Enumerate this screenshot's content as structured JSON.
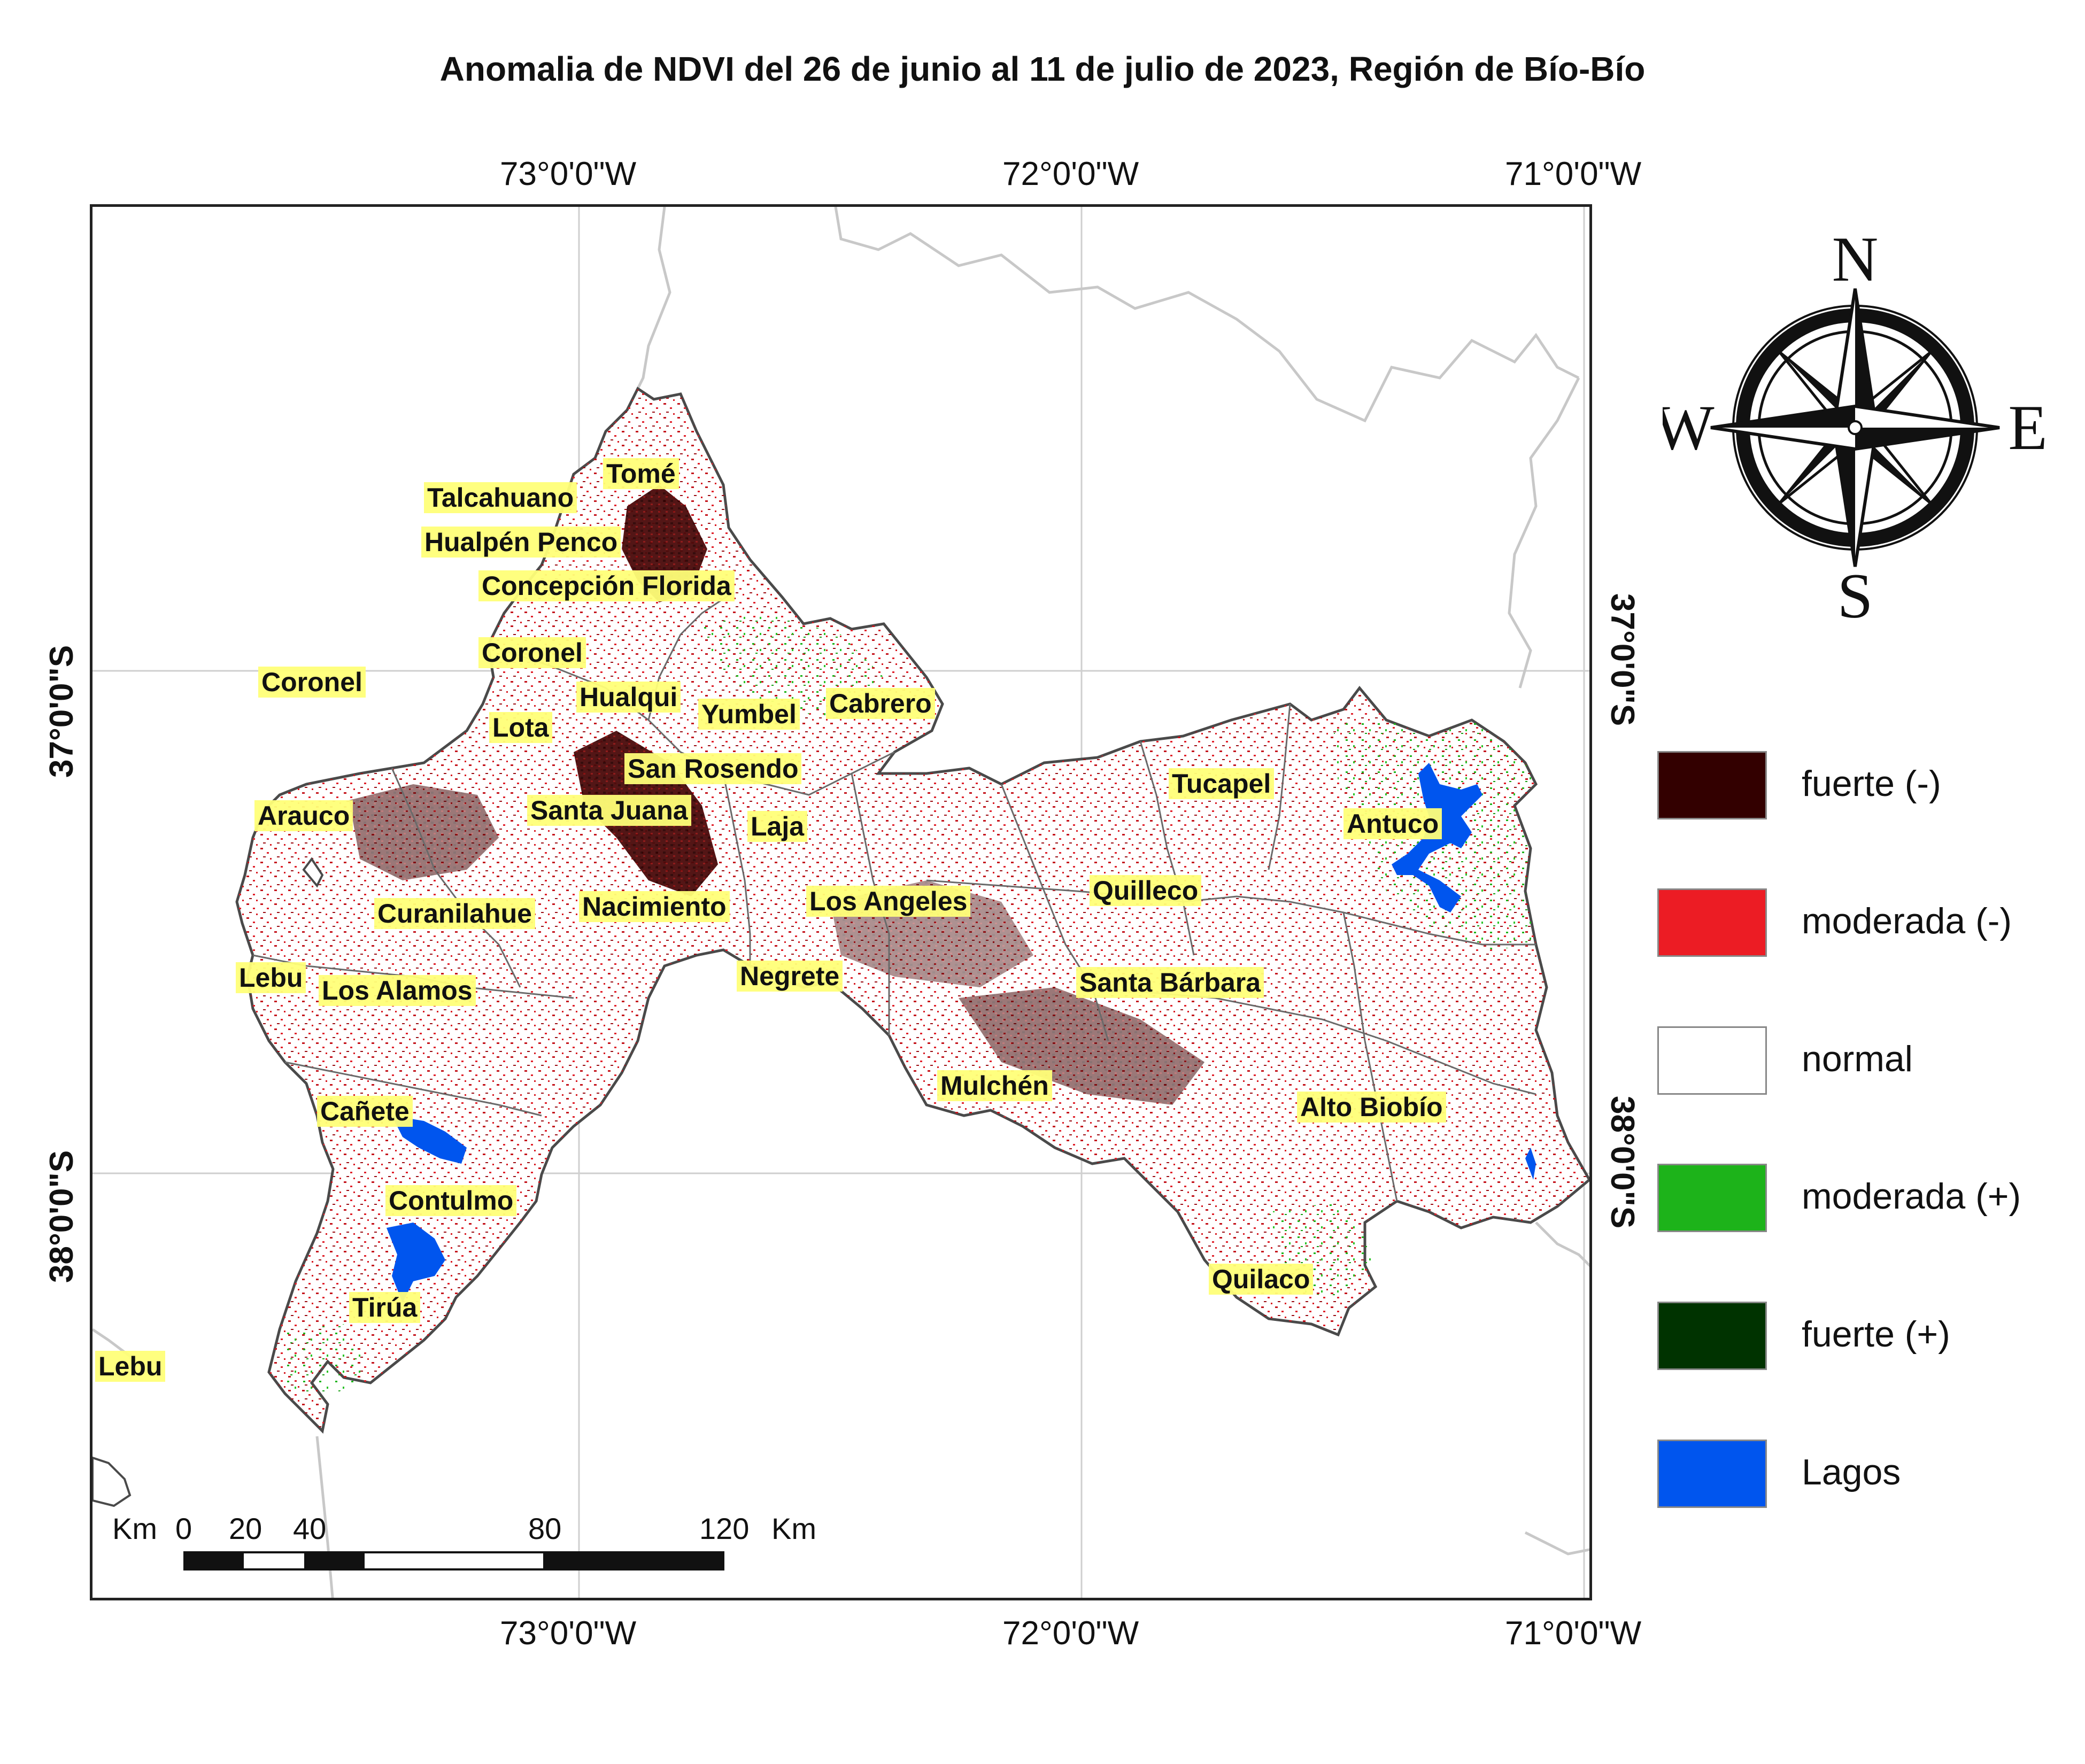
{
  "title": "Anomalia de NDVI del 26 de junio al 11 de julio de 2023, Región de Bío-Bío",
  "longitude_labels": [
    "73°0'0\"W",
    "72°0'0\"W",
    "71°0'0\"W"
  ],
  "latitude_labels": [
    "37°0'0\"S",
    "38°0'0\"S"
  ],
  "municipalities": [
    "Tomé",
    "Talcahuano",
    "Hualpén Penco",
    "Concepción Florida",
    "Coronel",
    "Coronel",
    "Hualqui",
    "Yumbel",
    "Cabrero",
    "Lota",
    "San Rosendo",
    "Tucapel",
    "Antuco",
    "Arauco",
    "Santa Juana",
    "Laja",
    "Quilleco",
    "Curanilahue",
    "Nacimiento",
    "Los Angeles",
    "Lebu",
    "Los Alamos",
    "Negrete",
    "Santa Bárbara",
    "Mulchén",
    "Alto Biobío",
    "Cañete",
    "Contulmo",
    "Quilaco",
    "Tirúa",
    "Lebu"
  ],
  "compass": {
    "north": "N",
    "south": "S",
    "east": "E",
    "west": "W"
  },
  "legend": [
    {
      "label": "fuerte (-)",
      "color": "#330000"
    },
    {
      "label": "moderada (-)",
      "color": "#ec1c24"
    },
    {
      "label": "normal",
      "color": "#ffffff"
    },
    {
      "label": "moderada (+)",
      "color": "#1db31a"
    },
    {
      "label": "fuerte (+)",
      "color": "#003300"
    },
    {
      "label": "Lagos",
      "color": "#0055ee"
    }
  ],
  "scale_bar": {
    "unit_left": "Km",
    "unit_right": "Km",
    "ticks": [
      "0",
      "20",
      "40",
      "80",
      "120"
    ]
  }
}
